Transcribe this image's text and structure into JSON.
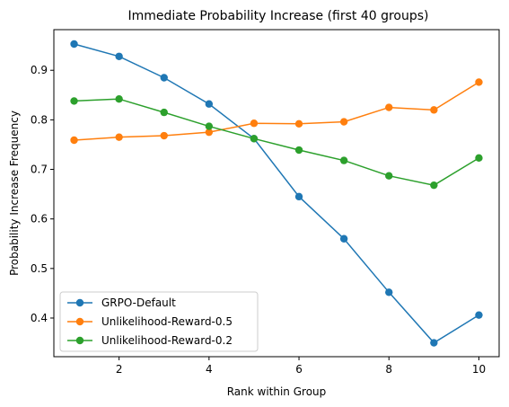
{
  "chart_data": {
    "type": "line",
    "title": "Immediate Probability Increase (first 40 groups)",
    "xlabel": "Rank within Group",
    "ylabel": "Probability Increase Frequency",
    "x": [
      1,
      2,
      3,
      4,
      5,
      6,
      7,
      8,
      9,
      10
    ],
    "xlim": [
      0.55,
      10.45
    ],
    "ylim": [
      0.322,
      0.982
    ],
    "xticks": [
      2,
      4,
      6,
      8,
      10
    ],
    "yticks": [
      0.4,
      0.5,
      0.6,
      0.7,
      0.8,
      0.9
    ],
    "xtick_labels": [
      "2",
      "4",
      "6",
      "8",
      "10"
    ],
    "ytick_labels": [
      "0.4",
      "0.5",
      "0.6",
      "0.7",
      "0.8",
      "0.9"
    ],
    "grid": false,
    "legend_position": "lower-left",
    "series": [
      {
        "name": "GRPO-Default",
        "color": "#1f77b4",
        "values": [
          0.953,
          0.928,
          0.885,
          0.832,
          0.762,
          0.645,
          0.56,
          0.452,
          0.35,
          0.406
        ]
      },
      {
        "name": "Unlikelihood-Reward-0.5",
        "color": "#ff7f0e",
        "values": [
          0.759,
          0.765,
          0.768,
          0.775,
          0.793,
          0.792,
          0.796,
          0.825,
          0.82,
          0.876
        ]
      },
      {
        "name": "Unlikelihood-Reward-0.2",
        "color": "#2ca02c",
        "values": [
          0.838,
          0.842,
          0.815,
          0.787,
          0.762,
          0.739,
          0.718,
          0.687,
          0.668,
          0.723
        ]
      }
    ]
  }
}
